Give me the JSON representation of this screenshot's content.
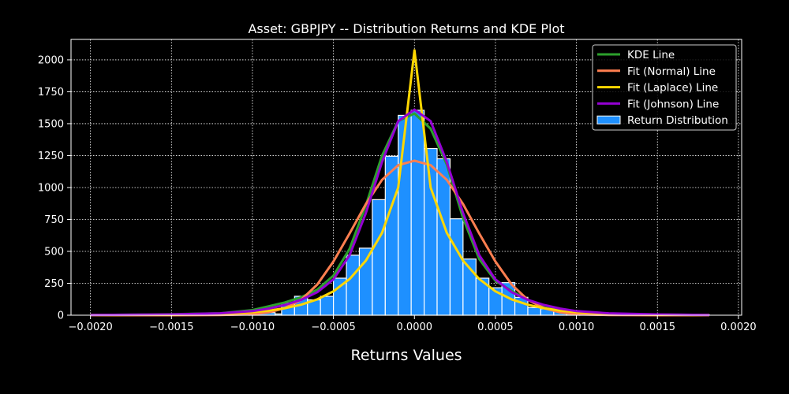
{
  "chart_data": {
    "type": "bar",
    "title": "Asset: GBPJPY -- Distribution Returns and KDE Plot",
    "xlabel": "Returns Values",
    "ylabel": "",
    "xlim": [
      -0.00212,
      0.00202
    ],
    "ylim": [
      0,
      2160
    ],
    "grid": true,
    "legend_position": "top-right",
    "x_ticks": [
      -0.002,
      -0.0015,
      -0.001,
      -0.0005,
      0.0,
      0.0005,
      0.001,
      0.0015,
      0.002
    ],
    "x_tick_labels": [
      "−0.0020",
      "−0.0015",
      "−0.0010",
      "−0.0005",
      "0.0000",
      "0.0005",
      "0.0010",
      "0.0015",
      "0.0020"
    ],
    "y_ticks": [
      0,
      250,
      500,
      750,
      1000,
      1250,
      1500,
      1750,
      2000
    ],
    "y_tick_labels": [
      "0",
      "250",
      "500",
      "750",
      "1000",
      "1250",
      "1500",
      "1750",
      "2000"
    ],
    "histogram": {
      "name": "Return Distribution",
      "color": "#1e90ff",
      "edge_color": "#ffffff",
      "bins": [
        {
          "x0": -0.00192,
          "x1": -0.00176,
          "value": 3
        },
        {
          "x0": -0.00176,
          "x1": -0.0016,
          "value": 8
        },
        {
          "x0": -0.0016,
          "x1": -0.00144,
          "value": 4
        },
        {
          "x0": -0.00144,
          "x1": -0.00128,
          "value": 5
        },
        {
          "x0": -0.00128,
          "x1": -0.00112,
          "value": 6
        },
        {
          "x0": -0.00112,
          "x1": -0.00102,
          "value": 5
        },
        {
          "x0": -0.00102,
          "x1": -0.00086,
          "value": 20
        },
        {
          "x0": -0.00086,
          "x1": -0.00082,
          "value": 10
        },
        {
          "x0": -0.00082,
          "x1": -0.00074,
          "value": 95
        },
        {
          "x0": -0.00074,
          "x1": -0.00066,
          "value": 148
        },
        {
          "x0": -0.00066,
          "x1": -0.00058,
          "value": 120
        },
        {
          "x0": -0.00058,
          "x1": -0.0005,
          "value": 148
        },
        {
          "x0": -0.0005,
          "x1": -0.00042,
          "value": 290
        },
        {
          "x0": -0.00042,
          "x1": -0.00034,
          "value": 470
        },
        {
          "x0": -0.00034,
          "x1": -0.00026,
          "value": 525
        },
        {
          "x0": -0.00026,
          "x1": -0.00018,
          "value": 905
        },
        {
          "x0": -0.00018,
          "x1": -0.0001,
          "value": 1245
        },
        {
          "x0": -0.0001,
          "x1": -2e-05,
          "value": 1565
        },
        {
          "x0": -2e-05,
          "x1": 6e-05,
          "value": 1605
        },
        {
          "x0": 6e-05,
          "x1": 0.00014,
          "value": 1305
        },
        {
          "x0": 0.00014,
          "x1": 0.00022,
          "value": 1225
        },
        {
          "x0": 0.00022,
          "x1": 0.0003,
          "value": 755
        },
        {
          "x0": 0.0003,
          "x1": 0.00038,
          "value": 440
        },
        {
          "x0": 0.00038,
          "x1": 0.00046,
          "value": 290
        },
        {
          "x0": 0.00046,
          "x1": 0.00054,
          "value": 215
        },
        {
          "x0": 0.00054,
          "x1": 0.00062,
          "value": 255
        },
        {
          "x0": 0.00062,
          "x1": 0.0007,
          "value": 140
        },
        {
          "x0": 0.0007,
          "x1": 0.00078,
          "value": 60
        },
        {
          "x0": 0.00078,
          "x1": 0.00086,
          "value": 50
        },
        {
          "x0": 0.00086,
          "x1": 0.00094,
          "value": 40
        },
        {
          "x0": 0.00094,
          "x1": 0.00102,
          "value": 25
        },
        {
          "x0": 0.00102,
          "x1": 0.00118,
          "value": 10
        },
        {
          "x0": 0.00118,
          "x1": 0.00134,
          "value": 5
        },
        {
          "x0": 0.00134,
          "x1": 0.0015,
          "value": 4
        },
        {
          "x0": 0.0015,
          "x1": 0.00166,
          "value": 8
        },
        {
          "x0": 0.00166,
          "x1": 0.00182,
          "value": 3
        }
      ]
    },
    "series": [
      {
        "name": "KDE Line",
        "color": "#2ca02c",
        "x": [
          -0.002,
          -0.0015,
          -0.0012,
          -0.001,
          -0.0009,
          -0.0008,
          -0.0007,
          -0.0006,
          -0.0005,
          -0.0004,
          -0.0003,
          -0.0002,
          -0.0001,
          0.0,
          0.0001,
          0.0002,
          0.0003,
          0.0004,
          0.0005,
          0.0006,
          0.0007,
          0.0008,
          0.0009,
          0.001,
          0.0012,
          0.0015,
          0.00182
        ],
        "y": [
          2,
          8,
          15,
          40,
          70,
          100,
          140,
          200,
          310,
          520,
          860,
          1250,
          1520,
          1580,
          1460,
          1180,
          760,
          440,
          270,
          190,
          120,
          75,
          50,
          28,
          12,
          6,
          2
        ]
      },
      {
        "name": "Fit (Normal) Line",
        "color": "#ff7f50",
        "x": [
          -0.002,
          -0.0015,
          -0.0012,
          -0.001,
          -0.0009,
          -0.0008,
          -0.0007,
          -0.0006,
          -0.0005,
          -0.0004,
          -0.0003,
          -0.0002,
          -0.0001,
          0.0,
          0.0001,
          0.0002,
          0.0003,
          0.0004,
          0.0005,
          0.0006,
          0.0007,
          0.0008,
          0.0009,
          0.001,
          0.0012,
          0.0015,
          0.00182
        ],
        "y": [
          0,
          0,
          1,
          8,
          22,
          55,
          120,
          240,
          420,
          640,
          870,
          1060,
          1175,
          1210,
          1175,
          1060,
          870,
          640,
          420,
          240,
          120,
          55,
          22,
          8,
          1,
          0,
          0
        ]
      },
      {
        "name": "Fit (Laplace) Line",
        "color": "#ffd700",
        "x": [
          -0.002,
          -0.0015,
          -0.0012,
          -0.001,
          -0.0009,
          -0.0008,
          -0.0007,
          -0.0006,
          -0.0005,
          -0.0004,
          -0.0003,
          -0.0002,
          -0.0001,
          0.0,
          0.0001,
          0.0002,
          0.0003,
          0.0004,
          0.0005,
          0.0006,
          0.0007,
          0.0008,
          0.0009,
          0.001,
          0.0012,
          0.0015,
          0.00182
        ],
        "y": [
          1,
          4,
          10,
          24,
          36,
          55,
          82,
          124,
          187,
          283,
          427,
          645,
          1000,
          2075,
          1000,
          645,
          427,
          283,
          187,
          124,
          82,
          55,
          36,
          24,
          10,
          4,
          1
        ]
      },
      {
        "name": "Fit (Johnson) Line",
        "color": "#9400d3",
        "x": [
          -0.002,
          -0.0015,
          -0.0012,
          -0.001,
          -0.0009,
          -0.0008,
          -0.0007,
          -0.0006,
          -0.0005,
          -0.0004,
          -0.0003,
          -0.0002,
          -0.0001,
          0.0,
          0.0001,
          0.0002,
          0.0003,
          0.0004,
          0.0005,
          0.0006,
          0.0007,
          0.0008,
          0.0009,
          0.001,
          0.0012,
          0.0015,
          0.00182
        ],
        "y": [
          2,
          6,
          15,
          32,
          52,
          80,
          120,
          180,
          280,
          470,
          800,
          1200,
          1520,
          1610,
          1520,
          1200,
          800,
          470,
          280,
          180,
          120,
          80,
          52,
          32,
          15,
          6,
          2
        ]
      }
    ],
    "legend": [
      {
        "label": "KDE Line",
        "color": "#2ca02c",
        "kind": "line"
      },
      {
        "label": "Fit (Normal) Line",
        "color": "#ff7f50",
        "kind": "line"
      },
      {
        "label": "Fit (Laplace) Line",
        "color": "#ffd700",
        "kind": "line"
      },
      {
        "label": "Fit (Johnson) Line",
        "color": "#9400d3",
        "kind": "line"
      },
      {
        "label": "Return Distribution",
        "color": "#1e90ff",
        "kind": "patch"
      }
    ]
  }
}
